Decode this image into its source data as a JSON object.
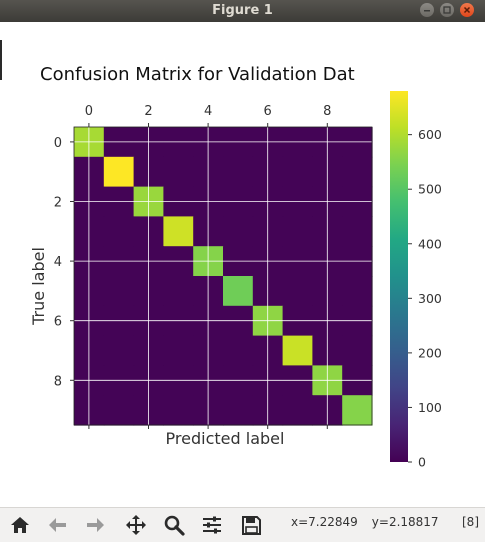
{
  "window": {
    "title": "Figure 1"
  },
  "chart_data": {
    "type": "heatmap",
    "title": "Confusion Matrix for Validation Dat",
    "xlabel": "Predicted label",
    "ylabel": "True label",
    "x_ticks": [
      0,
      2,
      4,
      6,
      8
    ],
    "y_ticks": [
      0,
      2,
      4,
      6,
      8
    ],
    "colorbar_ticks": [
      0,
      100,
      200,
      300,
      400,
      500,
      600
    ],
    "colorbar_range": [
      0,
      680
    ],
    "colormap": "viridis",
    "grid": true,
    "diagonal": [
      590,
      680,
      575,
      630,
      555,
      530,
      565,
      625,
      565,
      555
    ],
    "off_diagonal_value": 5
  },
  "toolbar": {
    "coord_x": "x=7.22849",
    "coord_y": "y=2.18817",
    "page": "[8]"
  },
  "icons": [
    "home-icon",
    "back-arrow-icon",
    "forward-arrow-icon",
    "move-icon",
    "zoom-icon",
    "configure-icon",
    "save-icon"
  ]
}
